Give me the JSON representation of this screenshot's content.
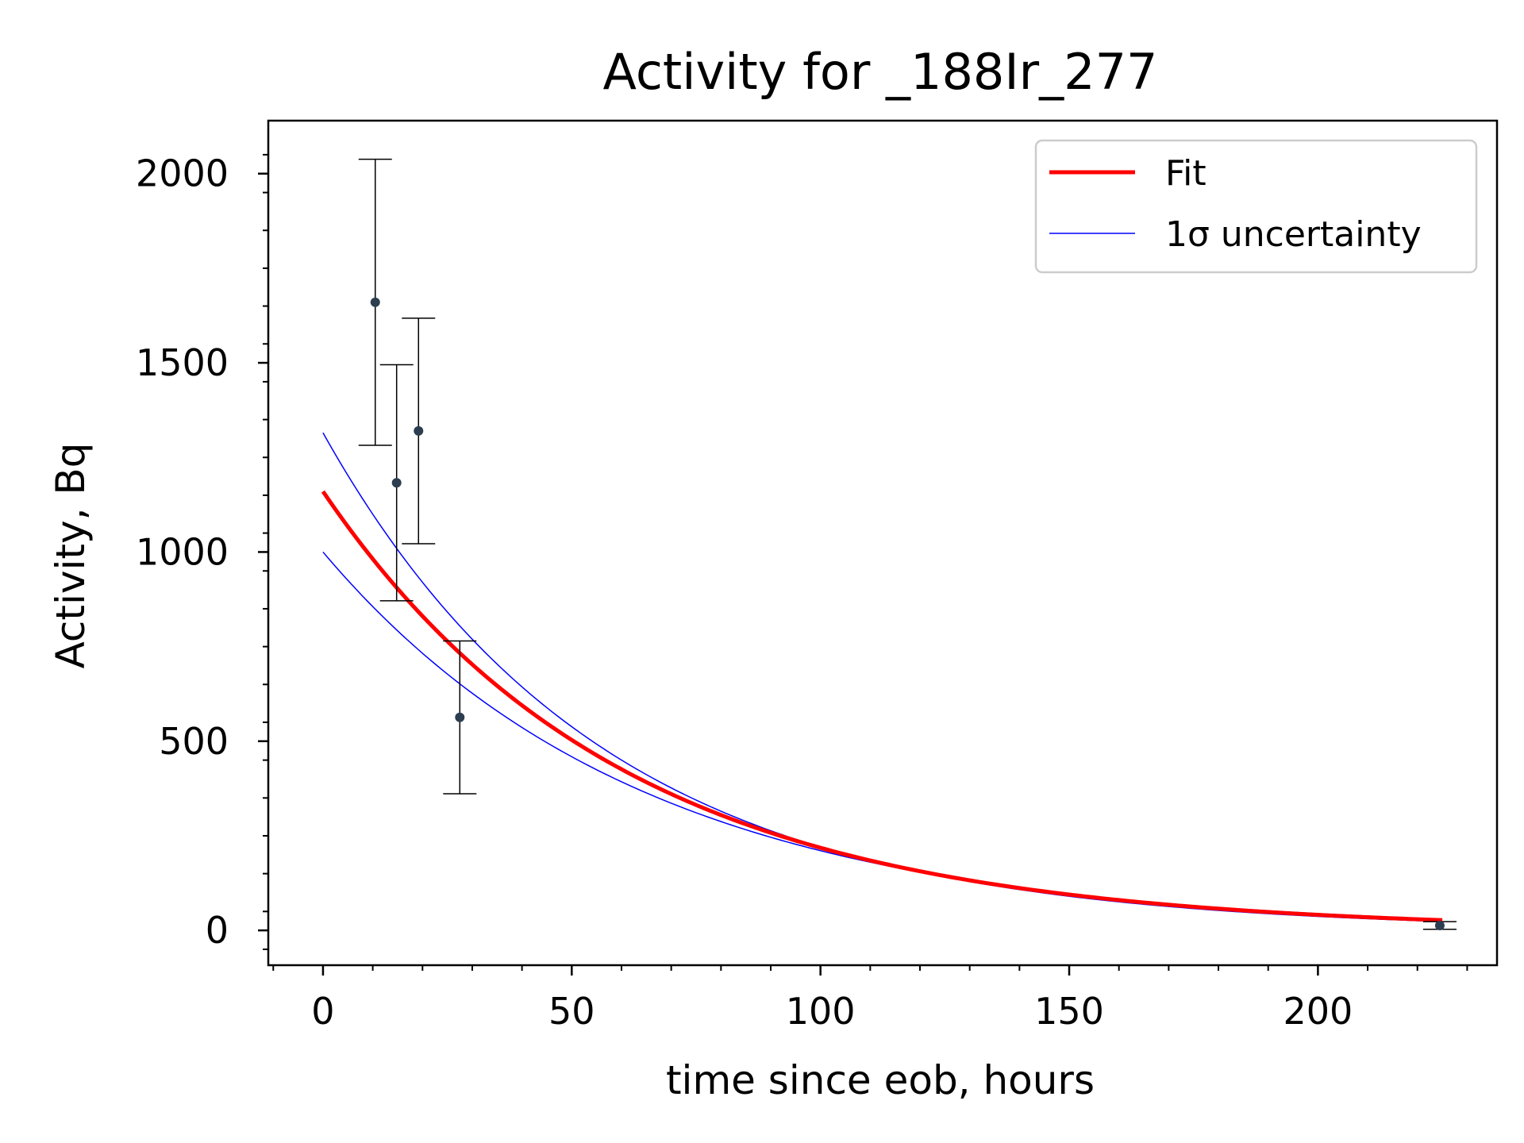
{
  "chart_data": {
    "type": "scatter",
    "title": "Activity for _188Ir_277",
    "xlabel": "time since eob, hours",
    "ylabel": "Activity, Bq",
    "xlim": [
      -11,
      236
    ],
    "ylim": [
      -92,
      2140
    ],
    "xticks": [
      0,
      50,
      100,
      150,
      200
    ],
    "yticks": [
      0,
      500,
      1000,
      1500,
      2000
    ],
    "grid": false,
    "legend_position": "top-right",
    "series": [
      {
        "name": "data",
        "kind": "errorbar",
        "color": "#2c3e50",
        "points": [
          {
            "x": 10.5,
            "y": 1660,
            "yerr": 378
          },
          {
            "x": 14.8,
            "y": 1183,
            "yerr": 312
          },
          {
            "x": 19.2,
            "y": 1320,
            "yerr": 298
          },
          {
            "x": 27.5,
            "y": 563,
            "yerr": 202
          },
          {
            "x": 224.5,
            "y": 13,
            "yerr": 10
          }
        ]
      },
      {
        "name": "Fit",
        "kind": "curve",
        "color": "#ff0000",
        "model": "exponential",
        "A0": 1160,
        "half_life_hours": 41.5,
        "x_range": [
          0,
          225
        ]
      },
      {
        "name": "1σ uncertainty",
        "kind": "band",
        "color": "#0000ff",
        "upper": {
          "A0": 1315,
          "half_life_hours": 38.8
        },
        "lower": {
          "A0": 1000,
          "half_life_hours": 44.5
        },
        "x_range": [
          0,
          225
        ]
      }
    ]
  }
}
